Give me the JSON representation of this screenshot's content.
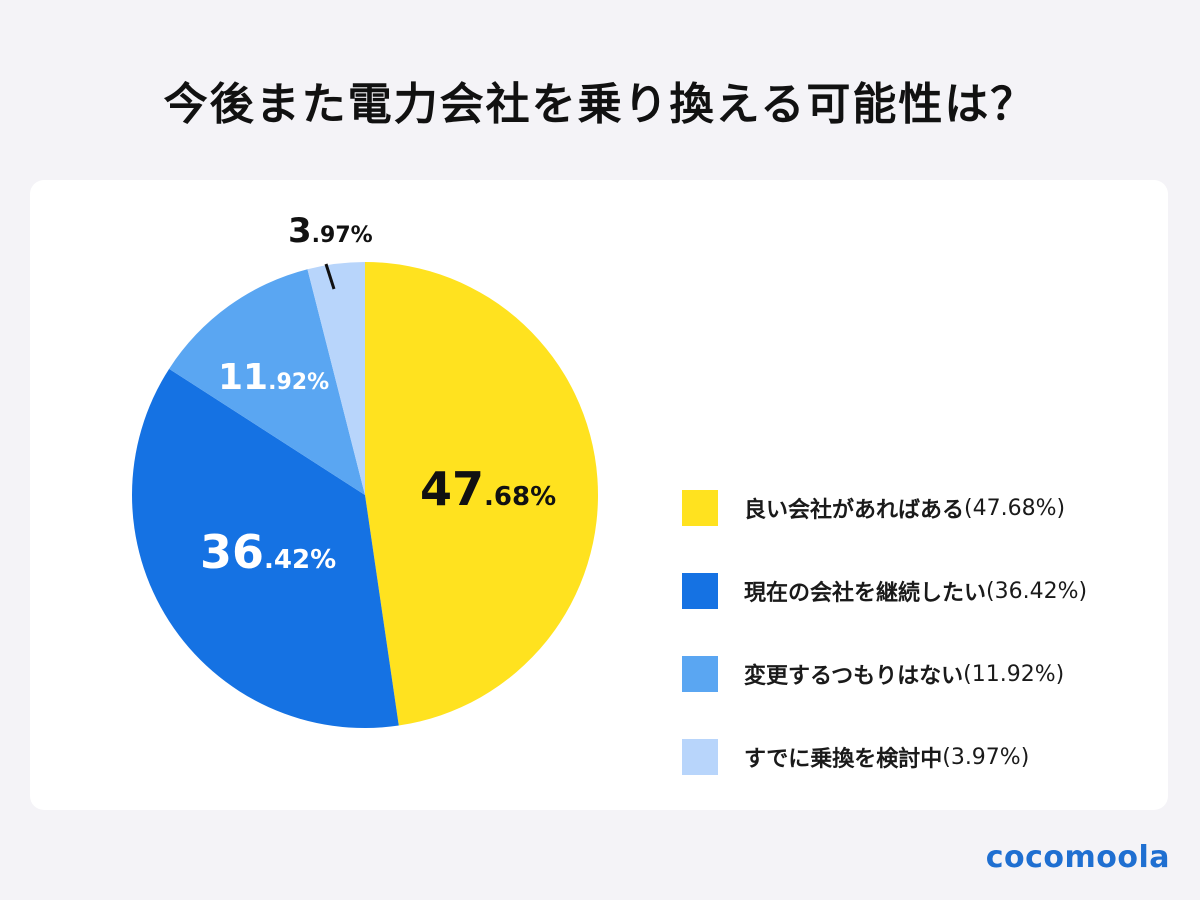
{
  "title": "今後また電力会社を乗り換える可能性は？",
  "brand": "cocomoola",
  "colors": {
    "background": "#f4f3f7",
    "card": "#ffffff",
    "brand": "#1f6fd1"
  },
  "legend": [
    {
      "label": "良い会社があればある",
      "pct": "(47.68%)",
      "color": "#ffe21f"
    },
    {
      "label": "現在の会社を継続したい",
      "pct": "(36.42%)",
      "color": "#1572e3"
    },
    {
      "label": "変更するつもりはない",
      "pct": "(11.92%)",
      "color": "#5aa6f2"
    },
    {
      "label": "すでに乗換を検討中",
      "pct": "(3.97%)",
      "color": "#b8d5fb"
    }
  ],
  "slice_labels": [
    {
      "int": "47",
      "dec": ".68%"
    },
    {
      "int": "36",
      "dec": ".42%"
    },
    {
      "int": "11",
      "dec": ".92%"
    },
    {
      "int": "3",
      "dec": ".97%"
    }
  ],
  "chart_data": {
    "type": "pie",
    "title": "今後また電力会社を乗り換える可能性は？",
    "categories": [
      "良い会社があればある",
      "現在の会社を継続したい",
      "変更するつもりはない",
      "すでに乗換を検討中"
    ],
    "values": [
      47.68,
      36.42,
      11.92,
      3.97
    ],
    "unit": "%",
    "colors": [
      "#ffe21f",
      "#1572e3",
      "#5aa6f2",
      "#b8d5fb"
    ],
    "start_angle": "12 o'clock",
    "direction": "clockwise",
    "legend_position": "right"
  }
}
